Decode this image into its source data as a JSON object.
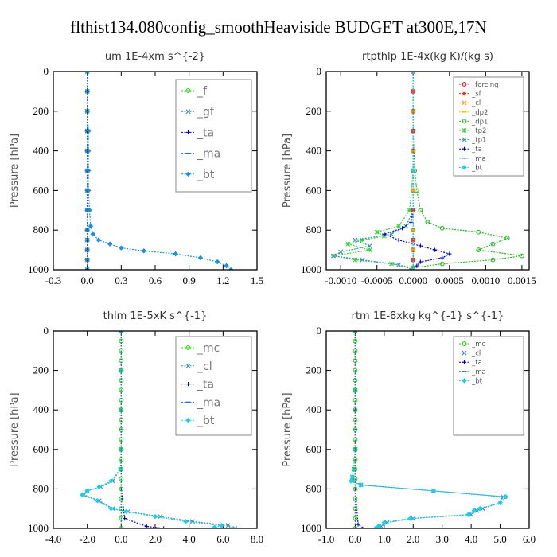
{
  "figure": {
    "title": "flthist134.080config_smoothHeaviside  BUDGET at300E,17N"
  },
  "chart_data": [
    {
      "id": "um",
      "type": "line",
      "title": "um   1E-4xm s^{-2}",
      "ylabel": "Pressure [hPa]",
      "xlabel": "",
      "xlim": [
        -0.3,
        1.5
      ],
      "ylim": [
        1000,
        0
      ],
      "xticks": [
        "-0.3",
        "0.0",
        "0.3",
        "0.6",
        "0.9",
        "1.2",
        "1.5"
      ],
      "yticks": [
        "0",
        "200",
        "400",
        "600",
        "800",
        "1000"
      ],
      "legend_position": "top-right",
      "series": [
        {
          "name": "_f",
          "color": "#2ad40f",
          "marker": "circle",
          "y": [
            0,
            100,
            200,
            300,
            400,
            500,
            600,
            700,
            800,
            850,
            900,
            950,
            1000
          ],
          "x": [
            0,
            0,
            0,
            0,
            0,
            0,
            0,
            0,
            0,
            0,
            0,
            0,
            0
          ]
        },
        {
          "name": "_gf",
          "color": "#3a8fb7",
          "marker": "x",
          "y": [
            0,
            100,
            200,
            300,
            400,
            500,
            600,
            700,
            800,
            850,
            900,
            950,
            1000
          ],
          "x": [
            0,
            0,
            0,
            0,
            0,
            0,
            0,
            0,
            0,
            0,
            0,
            0,
            0
          ]
        },
        {
          "name": "_ta",
          "color": "#0000cc",
          "marker": "plus",
          "y": [
            0,
            100,
            200,
            300,
            400,
            500,
            600,
            700,
            800,
            850,
            900,
            950,
            1000
          ],
          "x": [
            0,
            0,
            0,
            0,
            0,
            0,
            0,
            0,
            0,
            0,
            0,
            0,
            0
          ]
        },
        {
          "name": "_ma",
          "color": "#2a6fd6",
          "marker": "dash",
          "y": [
            0,
            100,
            200,
            300,
            400,
            500,
            600,
            700,
            800,
            850,
            900,
            950,
            1000
          ],
          "x": [
            0,
            0,
            0,
            0,
            0,
            0,
            0,
            0,
            0,
            0,
            0,
            0,
            0
          ]
        },
        {
          "name": "_bt",
          "color": "#1c8fe6",
          "marker": "diamond",
          "y": [
            0,
            100,
            200,
            300,
            400,
            500,
            600,
            700,
            780,
            820,
            850,
            870,
            890,
            905,
            920,
            940,
            960,
            980,
            1000
          ],
          "x": [
            0.0,
            0.0,
            0.0,
            0.01,
            0.01,
            0.01,
            0.01,
            0.02,
            0.03,
            0.05,
            0.1,
            0.2,
            0.3,
            0.5,
            0.78,
            1.0,
            1.15,
            1.23,
            1.27
          ]
        }
      ]
    },
    {
      "id": "rtpthlp",
      "type": "line",
      "title": "rtpthlp   1E-4x(kg K)/(kg s)",
      "ylabel": "Pressure [hPa]",
      "xlabel": "",
      "xlim": [
        -0.0012,
        0.0016
      ],
      "ylim": [
        1000,
        0
      ],
      "xticks": [
        "-0.0010",
        "-0.0005",
        "0.0000",
        "0.0005",
        "0.0010",
        "0.0015"
      ],
      "xtick_values": [
        -0.001,
        -0.0005,
        0.0,
        0.0005,
        0.001,
        0.0015
      ],
      "yticks": [
        "0",
        "200",
        "400",
        "600",
        "800",
        "1000"
      ],
      "legend_position": "top-right",
      "series": [
        {
          "name": "_forcing",
          "color": "#e01b1b",
          "marker": "circle",
          "y": [
            0,
            100,
            200,
            300,
            400,
            500,
            600,
            700,
            800,
            850,
            900,
            950,
            1000
          ],
          "x": [
            0,
            0,
            0,
            0,
            0,
            0,
            0,
            0,
            0,
            0,
            0,
            0,
            0
          ]
        },
        {
          "name": "_sf",
          "color": "#e0342a",
          "marker": "star",
          "y": [
            0,
            100,
            200,
            300,
            400,
            500,
            600,
            700,
            800,
            850,
            900,
            950,
            1000
          ],
          "x": [
            0,
            0,
            0,
            0,
            0,
            0,
            0,
            0,
            0,
            0,
            0,
            0,
            0
          ]
        },
        {
          "name": "_cl",
          "color": "#f0a000",
          "marker": "x",
          "y": [
            0,
            200,
            400,
            600,
            800,
            900,
            1000
          ],
          "x": [
            0,
            0,
            0,
            0,
            0,
            0,
            0
          ]
        },
        {
          "name": "_dp2",
          "color": "#e8c000",
          "marker": "dash",
          "y": [
            0,
            200,
            400,
            600,
            800,
            900,
            1000
          ],
          "x": [
            0,
            0,
            0,
            0,
            0,
            0,
            0
          ]
        },
        {
          "name": "_dp1",
          "color": "#2ab82a",
          "marker": "circle",
          "y": [
            0,
            300,
            500,
            600,
            700,
            760,
            790,
            810,
            840,
            870,
            900,
            930,
            950,
            970,
            990
          ],
          "x": [
            0,
            0,
            2e-05,
            5e-05,
            0.0001,
            0.0002,
            0.0004,
            0.0009,
            0.0013,
            0.0011,
            0.0009,
            0.0015,
            0.0011,
            0.0004,
            0
          ]
        },
        {
          "name": "_tp2",
          "color": "#3cd13c",
          "marker": "star",
          "y": [
            0,
            300,
            500,
            700,
            780,
            810,
            830,
            850,
            870,
            900,
            930,
            950,
            970,
            990
          ],
          "x": [
            0,
            0,
            0,
            -5e-05,
            -0.0002,
            -0.0005,
            -0.0004,
            -0.0007,
            -0.0009,
            -0.0006,
            -0.0011,
            -0.0008,
            -0.0003,
            0
          ]
        },
        {
          "name": "_tp1",
          "color": "#3a8fb7",
          "marker": "x",
          "y": [
            0,
            400,
            700,
            780,
            820,
            850,
            880,
            910,
            930,
            950,
            975,
            1000
          ],
          "x": [
            0,
            0,
            0,
            -0.0001,
            -0.0003,
            -0.0008,
            -0.0006,
            -0.001,
            -0.0011,
            -0.0007,
            -0.0002,
            0
          ]
        },
        {
          "name": "_ta",
          "color": "#0000cc",
          "marker": "plus",
          "y": [
            0,
            400,
            700,
            760,
            790,
            820,
            850,
            880,
            900,
            920,
            940,
            960,
            980,
            1000
          ],
          "x": [
            0,
            0,
            0,
            -3e-05,
            -0.00015,
            -0.0004,
            -0.0002,
            0.0001,
            0.0003,
            0.0005,
            0.0004,
            0.0001,
            5e-05,
            0
          ]
        },
        {
          "name": "_ma",
          "color": "#2a6fd6",
          "marker": "dash",
          "y": [
            0,
            500,
            1000
          ],
          "x": [
            0,
            0,
            0
          ]
        },
        {
          "name": "_bt",
          "color": "#1ccfe6",
          "marker": "diamond",
          "y": [
            0,
            500,
            1000
          ],
          "x": [
            0,
            0,
            0
          ]
        }
      ]
    },
    {
      "id": "thlm",
      "type": "line",
      "title": "thlm   1E-5xK s^{-1}",
      "ylabel": "Pressure [hPa]",
      "xlabel": "",
      "xlim": [
        -4.0,
        8.0
      ],
      "ylim": [
        1000,
        0
      ],
      "xticks": [
        "-4.0",
        "-2.0",
        "0.0",
        "2.0",
        "4.0",
        "6.0",
        "8.0"
      ],
      "yticks": [
        "0",
        "200",
        "400",
        "600",
        "800",
        "1000"
      ],
      "legend_position": "top-right",
      "series": [
        {
          "name": "_mc",
          "color": "#2ad40f",
          "marker": "circle",
          "y": [
            0,
            50,
            100,
            150,
            200,
            250,
            300,
            350,
            400,
            450,
            500,
            550,
            600,
            650,
            700,
            750,
            800,
            850,
            900,
            950,
            1000
          ],
          "x": [
            0,
            0,
            0,
            0,
            0,
            0,
            0,
            0,
            0,
            0,
            0,
            0,
            0,
            0,
            0,
            0,
            0,
            0,
            0,
            0,
            0
          ]
        },
        {
          "name": "_cl",
          "color": "#3a8fb7",
          "marker": "x",
          "y": [
            0,
            200,
            400,
            600,
            700,
            760,
            790,
            810,
            830,
            860,
            900,
            915,
            940,
            965,
            985,
            1000
          ],
          "x": [
            0,
            0,
            0,
            0,
            -0.05,
            -0.5,
            -1.2,
            -2.0,
            -2.2,
            -1.3,
            -0.5,
            0.4,
            2.3,
            4.2,
            6.3,
            6.7
          ]
        },
        {
          "name": "_ta",
          "color": "#0000cc",
          "marker": "plus",
          "y": [
            0,
            400,
            800,
            950,
            990,
            1000
          ],
          "x": [
            0,
            0,
            0,
            0.2,
            1.5,
            2.5
          ]
        },
        {
          "name": "_ma",
          "color": "#2a6fd6",
          "marker": "dash",
          "y": [
            0,
            500,
            1000
          ],
          "x": [
            0,
            0,
            0
          ]
        },
        {
          "name": "_bt",
          "color": "#1ccfe6",
          "marker": "diamond",
          "y": [
            0,
            200,
            400,
            600,
            700,
            760,
            790,
            810,
            830,
            860,
            900,
            915,
            940,
            965,
            985,
            995
          ],
          "x": [
            0,
            0,
            0,
            0,
            -0.05,
            -0.6,
            -1.3,
            -2.0,
            -2.3,
            -1.4,
            -0.6,
            0.3,
            2.0,
            3.8,
            5.9,
            5.5
          ]
        }
      ]
    },
    {
      "id": "rtm",
      "type": "line",
      "title": "rtm   1E-8xkg kg^{-1} s^{-1}",
      "ylabel": "Pressure [hPa]",
      "xlabel": "",
      "xlim": [
        -1.0,
        6.0
      ],
      "ylim": [
        1000,
        0
      ],
      "xticks": [
        "-1.0",
        "0.0",
        "1.0",
        "2.0",
        "3.0",
        "4.0",
        "5.0",
        "6.0"
      ],
      "yticks": [
        "0",
        "200",
        "400",
        "600",
        "800",
        "1000"
      ],
      "legend_position": "top-right",
      "series": [
        {
          "name": "_mc",
          "color": "#2ad40f",
          "marker": "circle",
          "y": [
            0,
            50,
            100,
            150,
            200,
            250,
            300,
            350,
            400,
            450,
            500,
            550,
            600,
            650,
            700,
            750,
            800,
            850,
            900,
            950,
            1000
          ],
          "x": [
            0,
            0,
            0,
            0,
            0,
            0,
            0,
            0,
            0,
            0,
            0,
            0,
            0,
            0,
            0,
            0,
            0,
            0,
            0,
            0,
            0
          ]
        },
        {
          "name": "_cl",
          "color": "#3a8fb7",
          "marker": "x",
          "y": [
            0,
            300,
            600,
            700,
            740,
            760,
            780,
            810,
            840,
            870,
            900,
            910,
            930,
            950,
            970,
            990,
            1000
          ],
          "x": [
            0,
            0,
            0,
            -0.05,
            -0.1,
            -0.1,
            0.2,
            2.7,
            5.1,
            5.0,
            4.4,
            4.2,
            4.0,
            2.0,
            1.1,
            0.9,
            0.8
          ]
        },
        {
          "name": "_ta",
          "color": "#0000cc",
          "marker": "plus",
          "y": [
            0,
            400,
            800,
            980,
            1000
          ],
          "x": [
            0,
            0,
            0,
            0.1,
            0.3
          ]
        },
        {
          "name": "_ma",
          "color": "#2a6fd6",
          "marker": "dash",
          "y": [
            0,
            500,
            1000
          ],
          "x": [
            0,
            0,
            0
          ]
        },
        {
          "name": "_bt",
          "color": "#1ccfe6",
          "marker": "diamond",
          "y": [
            0,
            300,
            600,
            700,
            740,
            760,
            780,
            810,
            840,
            870,
            900,
            910,
            930,
            950,
            970,
            990,
            1000
          ],
          "x": [
            0,
            0,
            0,
            -0.05,
            -0.1,
            -0.15,
            0.2,
            2.7,
            5.2,
            5.0,
            4.3,
            4.1,
            3.9,
            1.9,
            1.0,
            0.8,
            0.7
          ]
        }
      ]
    }
  ]
}
